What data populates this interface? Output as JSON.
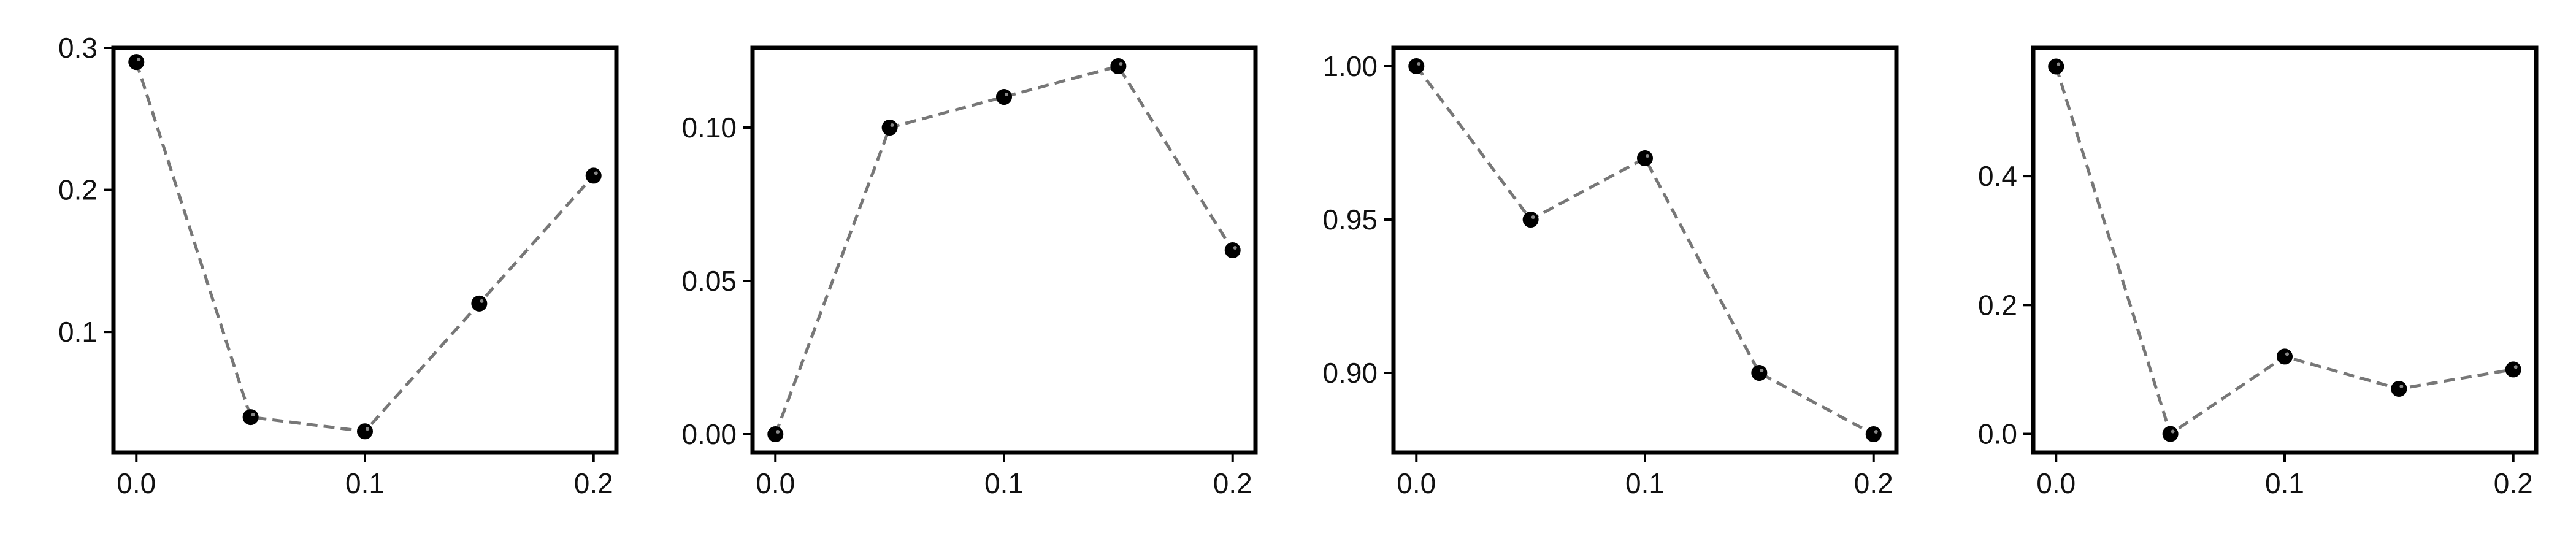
{
  "chart_data": [
    {
      "type": "line",
      "x": [
        0.0,
        0.05,
        0.1,
        0.15,
        0.2
      ],
      "y": [
        0.29,
        0.04,
        0.03,
        0.12,
        0.21
      ],
      "xlim": [
        -0.01,
        0.21
      ],
      "ylim": [
        0.015,
        0.3
      ],
      "xticks": [
        0.0,
        0.1,
        0.2
      ],
      "xtick_labels": [
        "0.0",
        "0.1",
        "0.2"
      ],
      "yticks": [
        0.1,
        0.2,
        0.3
      ],
      "ytick_labels": [
        "0.1",
        "0.2",
        "0.3"
      ],
      "title": "",
      "xlabel": "",
      "ylabel": "",
      "grid": false
    },
    {
      "type": "line",
      "x": [
        0.0,
        0.05,
        0.1,
        0.15,
        0.2
      ],
      "y": [
        0.0,
        0.1,
        0.11,
        0.12,
        0.06
      ],
      "xlim": [
        -0.01,
        0.21
      ],
      "ylim": [
        -0.006,
        0.126
      ],
      "xticks": [
        0.0,
        0.1,
        0.2
      ],
      "xtick_labels": [
        "0.0",
        "0.1",
        "0.2"
      ],
      "yticks": [
        0.0,
        0.05,
        0.1
      ],
      "ytick_labels": [
        "0.00",
        "0.05",
        "0.10"
      ],
      "title": "",
      "xlabel": "",
      "ylabel": "",
      "grid": false
    },
    {
      "type": "line",
      "x": [
        0.0,
        0.05,
        0.1,
        0.15,
        0.2
      ],
      "y": [
        1.0,
        0.95,
        0.97,
        0.9,
        0.88
      ],
      "xlim": [
        -0.01,
        0.21
      ],
      "ylim": [
        0.874,
        1.006
      ],
      "xticks": [
        0.0,
        0.1,
        0.2
      ],
      "xtick_labels": [
        "0.0",
        "0.1",
        "0.2"
      ],
      "yticks": [
        0.9,
        0.95,
        1.0
      ],
      "ytick_labels": [
        "0.90",
        "0.95",
        "1.00"
      ],
      "title": "",
      "xlabel": "",
      "ylabel": "",
      "grid": false
    },
    {
      "type": "line",
      "x": [
        0.0,
        0.05,
        0.1,
        0.15,
        0.2
      ],
      "y": [
        0.57,
        0.0,
        0.12,
        0.07,
        0.1
      ],
      "xlim": [
        -0.01,
        0.21
      ],
      "ylim": [
        -0.029,
        0.599
      ],
      "xticks": [
        0.0,
        0.1,
        0.2
      ],
      "xtick_labels": [
        "0.0",
        "0.1",
        "0.2"
      ],
      "yticks": [
        0.0,
        0.2,
        0.4
      ],
      "ytick_labels": [
        "0.0",
        "0.2",
        "0.4"
      ],
      "title": "",
      "xlabel": "",
      "ylabel": "",
      "grid": false
    }
  ],
  "style": {
    "line_color": "#777777",
    "line_style": "dashed",
    "marker_color": "#000000",
    "marker_highlight": "#888888",
    "frame_color": "#000000"
  }
}
